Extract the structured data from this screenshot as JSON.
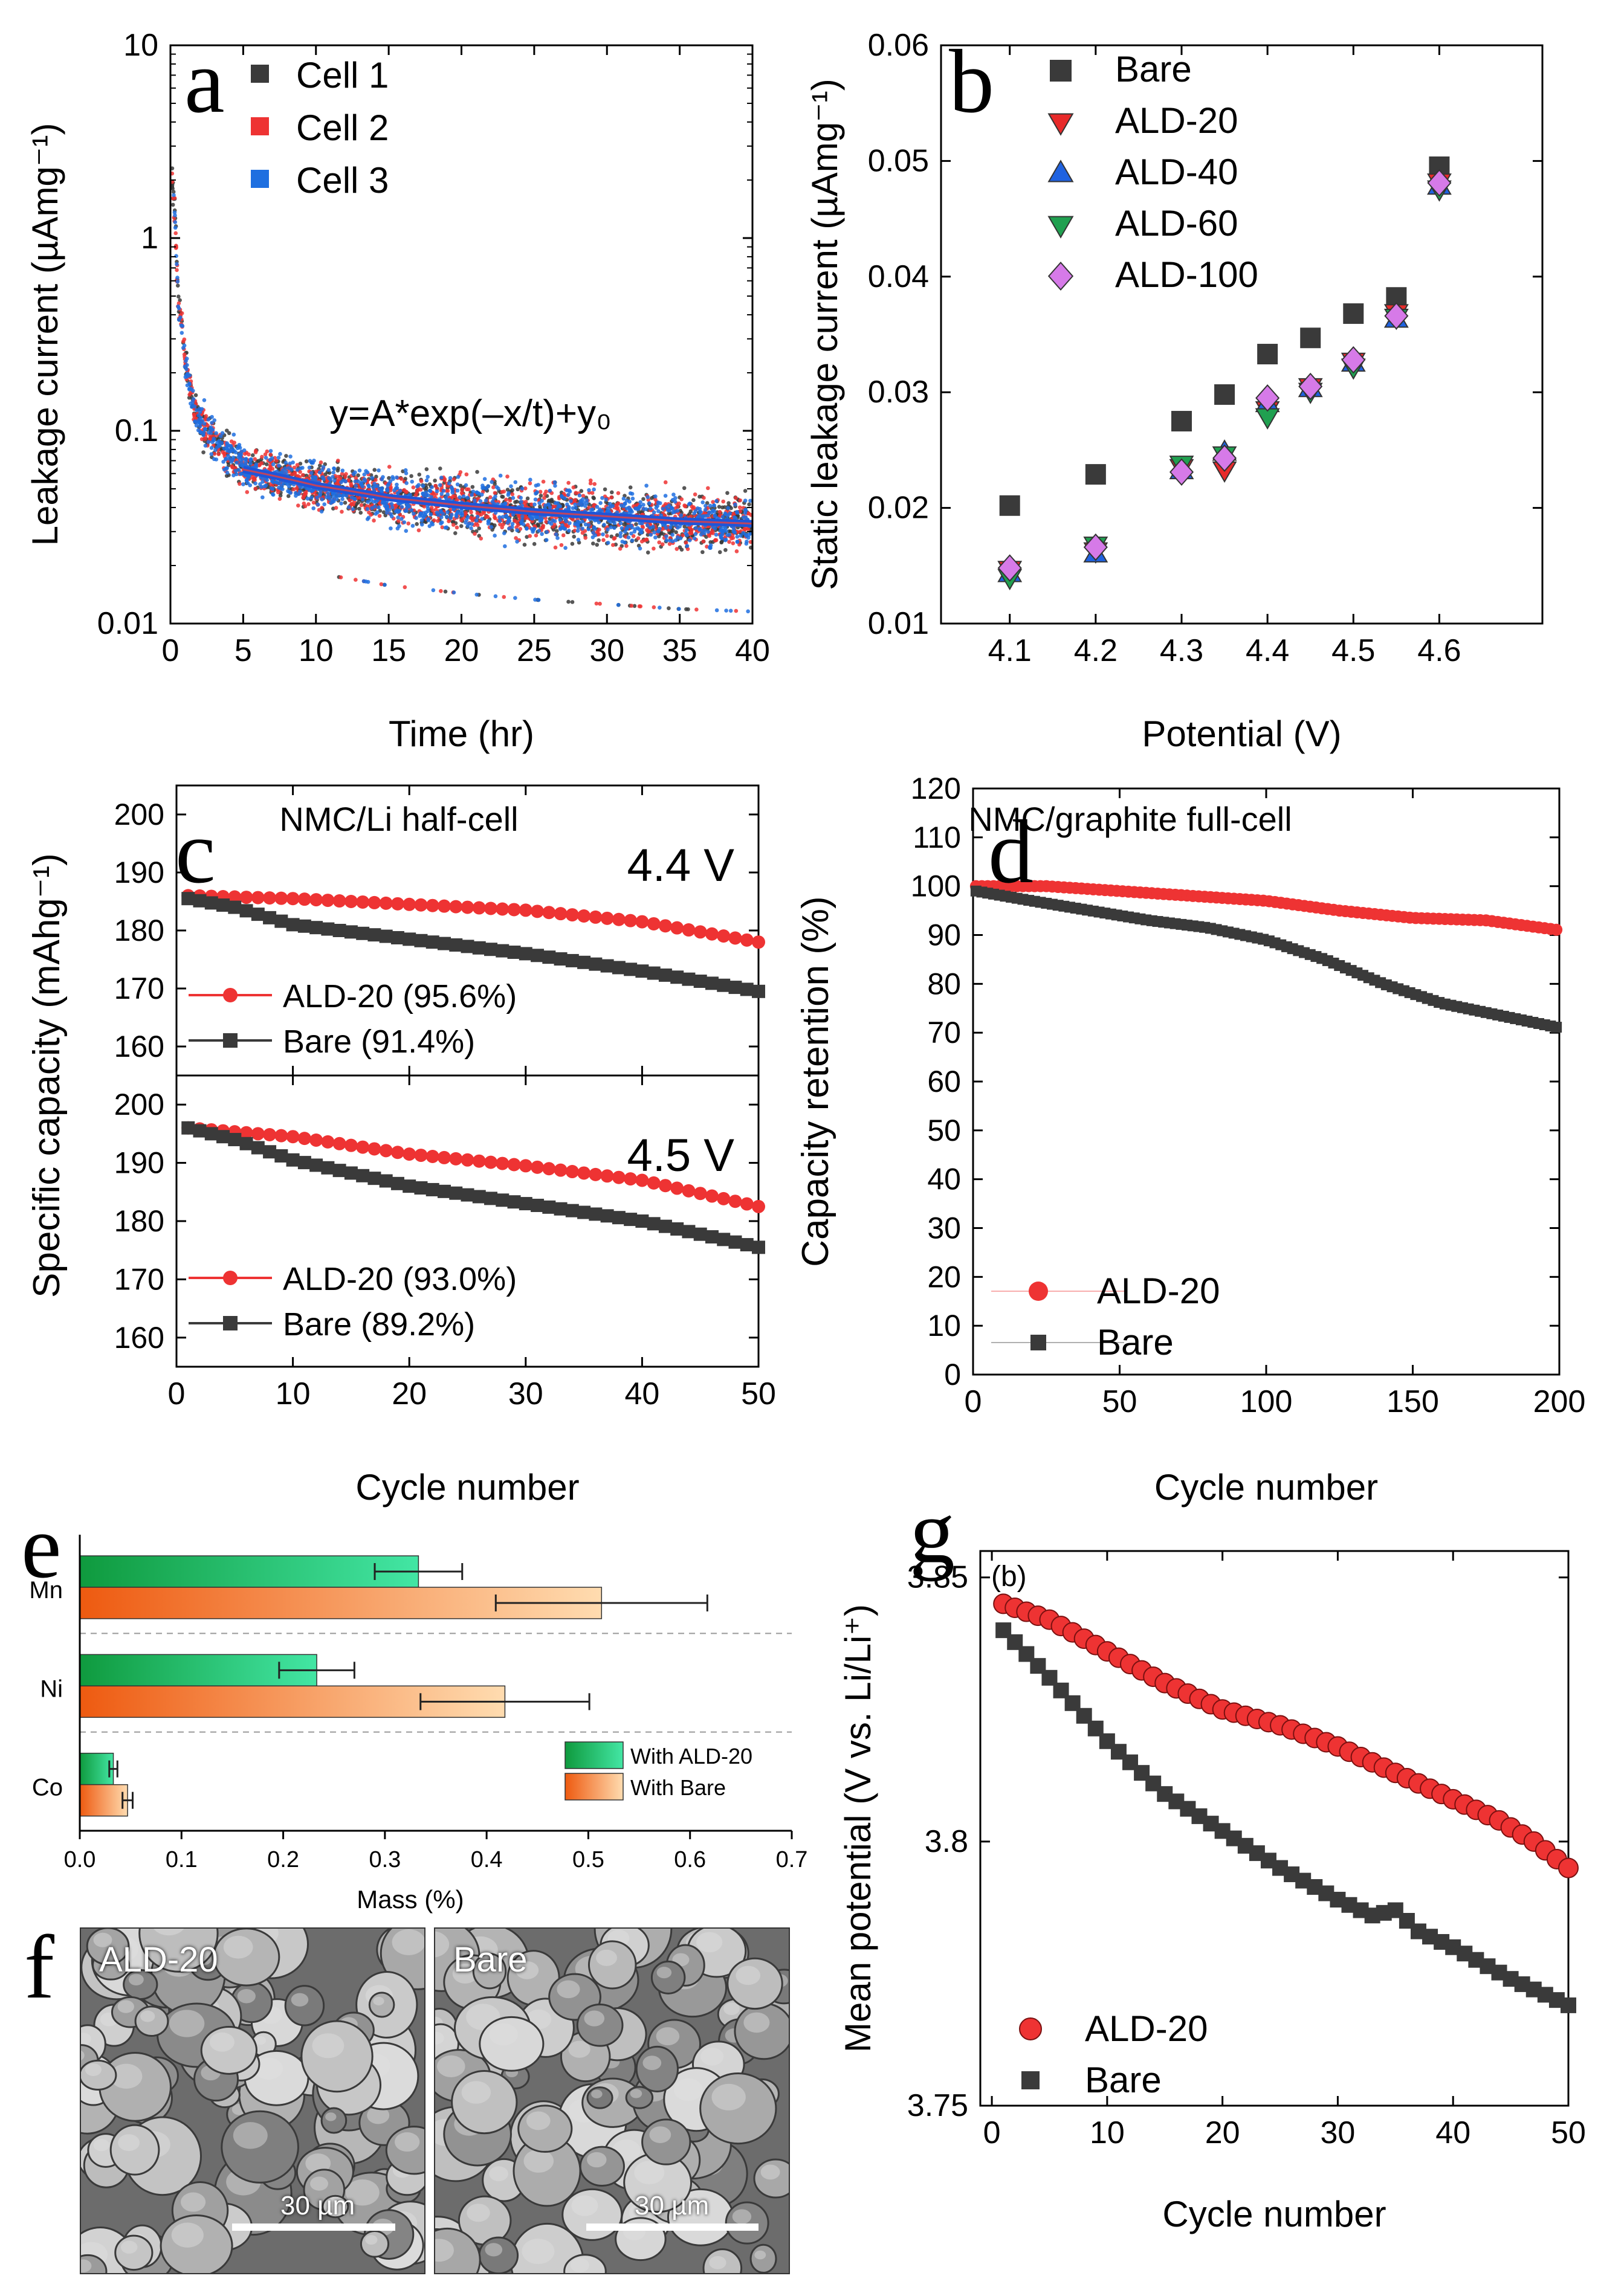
{
  "chart_data": [
    {
      "panel": "a",
      "type": "scatter",
      "xlabel": "Time (hr)",
      "ylabel": "Leakage current (µAmg⁻¹)",
      "xlim": [
        0,
        40
      ],
      "ylim": [
        0.01,
        10
      ],
      "yscale": "log",
      "xticks": [
        0,
        5,
        10,
        15,
        20,
        25,
        30,
        35,
        40
      ],
      "yticks": [
        0.01,
        0.1,
        1,
        10
      ],
      "ytick_labels": [
        "0.01",
        "0.1",
        "1",
        "10"
      ],
      "annotation": "y=A*exp(–x/t)+y₀",
      "series": [
        {
          "name": "Cell 1",
          "color": "#3a3a3a"
        },
        {
          "name": "Cell 2",
          "color": "#ee3333"
        },
        {
          "name": "Cell 3",
          "color": "#1e6fe0"
        }
      ],
      "fit": {
        "color": "#1f55d8",
        "x": [
          5,
          10,
          15,
          20,
          25,
          30,
          35,
          40
        ],
        "y": [
          0.063,
          0.052,
          0.045,
          0.041,
          0.038,
          0.036,
          0.034,
          0.033
        ]
      },
      "decay": {
        "x": [
          0,
          0.5,
          1,
          1.5,
          2,
          3,
          4,
          5
        ],
        "y": [
          2.5,
          0.5,
          0.22,
          0.14,
          0.11,
          0.09,
          0.075,
          0.066
        ]
      }
    },
    {
      "panel": "b",
      "type": "scatter",
      "xlabel": "Potential (V)",
      "ylabel": "Static leakage current (µAmg⁻¹)",
      "xlim": [
        4.02,
        4.72
      ],
      "ylim": [
        0.01,
        0.06
      ],
      "xticks": [
        4.1,
        4.2,
        4.3,
        4.4,
        4.5,
        4.6
      ],
      "yticks": [
        0.01,
        0.02,
        0.03,
        0.04,
        0.05,
        0.06
      ],
      "series": [
        {
          "name": "Bare",
          "marker": "square",
          "color": "#3a3a3a",
          "x": [
            4.1,
            4.2,
            4.3,
            4.35,
            4.4,
            4.45,
            4.5,
            4.55,
            4.6
          ],
          "y": [
            0.0202,
            0.0229,
            0.0275,
            0.0298,
            0.0333,
            0.0347,
            0.0368,
            0.0382,
            0.0495
          ]
        },
        {
          "name": "ALD-20",
          "marker": "triangle-down",
          "color": "#e82a2a",
          "x": [
            4.1,
            4.2,
            4.3,
            4.35,
            4.4,
            4.45,
            4.5,
            4.55,
            4.6
          ],
          "y": [
            0.0147,
            0.0163,
            0.0235,
            0.0233,
            0.0285,
            0.0305,
            0.0327,
            0.0369,
            0.0482
          ]
        },
        {
          "name": "ALD-40",
          "marker": "triangle-up",
          "color": "#1f62e0",
          "x": [
            4.1,
            4.2,
            4.3,
            4.35,
            4.4,
            4.45,
            4.5,
            4.55,
            4.6
          ],
          "y": [
            0.0143,
            0.016,
            0.0232,
            0.0248,
            0.029,
            0.0303,
            0.0325,
            0.0363,
            0.0478
          ]
        },
        {
          "name": "ALD-60",
          "marker": "triangle-down",
          "color": "#20a050",
          "x": [
            4.1,
            4.2,
            4.3,
            4.35,
            4.4,
            4.45,
            4.5,
            4.55,
            4.6
          ],
          "y": [
            0.014,
            0.0168,
            0.0238,
            0.0246,
            0.0279,
            0.0301,
            0.0322,
            0.0365,
            0.0476
          ]
        },
        {
          "name": "ALD-100",
          "marker": "diamond",
          "color": "#d67ae8",
          "x": [
            4.1,
            4.2,
            4.3,
            4.35,
            4.4,
            4.45,
            4.5,
            4.55,
            4.6
          ],
          "y": [
            0.0148,
            0.0166,
            0.0231,
            0.0243,
            0.0295,
            0.0305,
            0.0328,
            0.0366,
            0.0481
          ]
        }
      ]
    },
    {
      "panel": "c",
      "type": "line",
      "title": "NMC/Li half-cell",
      "xlabel": "Cycle number",
      "ylabel": "Specific capacity (mAhg⁻¹)",
      "xlim": [
        0,
        50
      ],
      "xticks": [
        0,
        10,
        20,
        30,
        40,
        50
      ],
      "ylim": [
        155,
        205
      ],
      "yticks": [
        160,
        170,
        180,
        190,
        200
      ],
      "subplots": [
        {
          "label": "4.4 V",
          "series": [
            {
              "name": "ALD-20 (95.6%)",
              "color": "#ee3333",
              "marker": "circle",
              "x": [
                1,
                10,
                20,
                30,
                40,
                50
              ],
              "y": [
                186,
                185.5,
                184.5,
                183.5,
                181.5,
                178
              ]
            },
            {
              "name": "Bare (91.4%)",
              "color": "#3a3a3a",
              "marker": "square",
              "x": [
                1,
                5,
                10,
                20,
                30,
                40,
                50
              ],
              "y": [
                185.5,
                184,
                181,
                178.5,
                176,
                173,
                169.5
              ]
            }
          ]
        },
        {
          "label": "4.5 V",
          "series": [
            {
              "name": "ALD-20 (93.0%)",
              "color": "#ee3333",
              "marker": "circle",
              "x": [
                1,
                10,
                20,
                30,
                40,
                50
              ],
              "y": [
                196,
                194.5,
                191.5,
                189.5,
                187,
                182.5
              ]
            },
            {
              "name": "Bare (89.2%)",
              "color": "#3a3a3a",
              "marker": "square",
              "x": [
                1,
                5,
                10,
                20,
                30,
                40,
                50
              ],
              "y": [
                196,
                194,
                190.5,
                186,
                183,
                180,
                175.5
              ]
            }
          ]
        }
      ]
    },
    {
      "panel": "d",
      "type": "line",
      "title": "NMC/graphite full-cell",
      "xlabel": "Cycle number",
      "ylabel": "Capacity retention (%)",
      "xlim": [
        0,
        200
      ],
      "xticks": [
        0,
        50,
        100,
        150,
        200
      ],
      "ylim": [
        0,
        120
      ],
      "yticks": [
        0,
        10,
        20,
        30,
        40,
        50,
        60,
        70,
        80,
        90,
        100,
        110,
        120
      ],
      "series": [
        {
          "name": "ALD-20",
          "color": "#ee3333",
          "marker": "circle",
          "x": [
            1,
            25,
            50,
            75,
            100,
            125,
            150,
            175,
            200
          ],
          "y": [
            100,
            100,
            99,
            98,
            97,
            95,
            93.5,
            93,
            91
          ]
        },
        {
          "name": "Bare",
          "color": "#3a3a3a",
          "marker": "square",
          "x": [
            1,
            20,
            40,
            60,
            80,
            100,
            120,
            140,
            160,
            180,
            200
          ],
          "y": [
            99,
            97,
            95,
            93,
            91.5,
            89,
            85,
            80,
            76,
            73.5,
            71
          ]
        }
      ]
    },
    {
      "panel": "e",
      "type": "bar",
      "orientation": "horizontal",
      "xlabel": "Mass (%)",
      "xlim": [
        0,
        0.7
      ],
      "xticks": [
        0.0,
        0.1,
        0.2,
        0.3,
        0.4,
        0.5,
        0.6,
        0.7
      ],
      "xtick_labels": [
        "0.0",
        "0.1",
        "0.2",
        "0.3",
        "0.4",
        "0.5",
        "0.6",
        "0.7"
      ],
      "categories": [
        "Mn",
        "Ni",
        "Co"
      ],
      "series": [
        {
          "name": "With ALD-20",
          "color_from": "#0f9a3e",
          "color_to": "#43e6a4",
          "values": [
            0.333,
            0.233,
            0.033
          ],
          "errors": [
            0.043,
            0.037,
            0.004
          ]
        },
        {
          "name": "With Bare",
          "color_from": "#ee5a10",
          "color_to": "#ffdcb0",
          "values": [
            0.513,
            0.418,
            0.047
          ],
          "errors": [
            0.104,
            0.083,
            0.005
          ]
        }
      ]
    },
    {
      "panel": "g",
      "type": "scatter",
      "annotation": "(b)",
      "xlabel": "Cycle number",
      "ylabel": "Mean potential (V vs. Li/Li⁺)",
      "xlim": [
        -1,
        50
      ],
      "xticks": [
        0,
        10,
        20,
        30,
        40,
        50
      ],
      "ylim": [
        3.75,
        3.855
      ],
      "yticks": [
        3.75,
        3.8,
        3.85
      ],
      "ytick_labels": [
        "3.75",
        "3.8",
        "3.85"
      ],
      "series": [
        {
          "name": "ALD-20",
          "color": "#ee3333",
          "marker": "circle",
          "x": [
            1,
            5,
            10,
            15,
            20,
            25,
            30,
            35,
            40,
            44,
            47,
            50
          ],
          "y": [
            3.845,
            3.842,
            3.836,
            3.83,
            3.825,
            3.822,
            3.818,
            3.813,
            3.808,
            3.804,
            3.8,
            3.795
          ]
        },
        {
          "name": "Bare",
          "color": "#3a3a3a",
          "marker": "square",
          "x": [
            1,
            5,
            10,
            15,
            20,
            25,
            30,
            33,
            35,
            37,
            40,
            45,
            50
          ],
          "y": [
            3.84,
            3.831,
            3.819,
            3.809,
            3.802,
            3.795,
            3.789,
            3.786,
            3.787,
            3.783,
            3.78,
            3.774,
            3.769
          ]
        }
      ]
    }
  ],
  "panel_letters": [
    "a",
    "b",
    "c",
    "d",
    "e",
    "f",
    "g"
  ],
  "sem": {
    "left_label": "ALD-20",
    "right_label": "Bare",
    "scale_label": "30 µm"
  },
  "colors": {
    "axis": "#000000",
    "dashed": "#999999"
  }
}
